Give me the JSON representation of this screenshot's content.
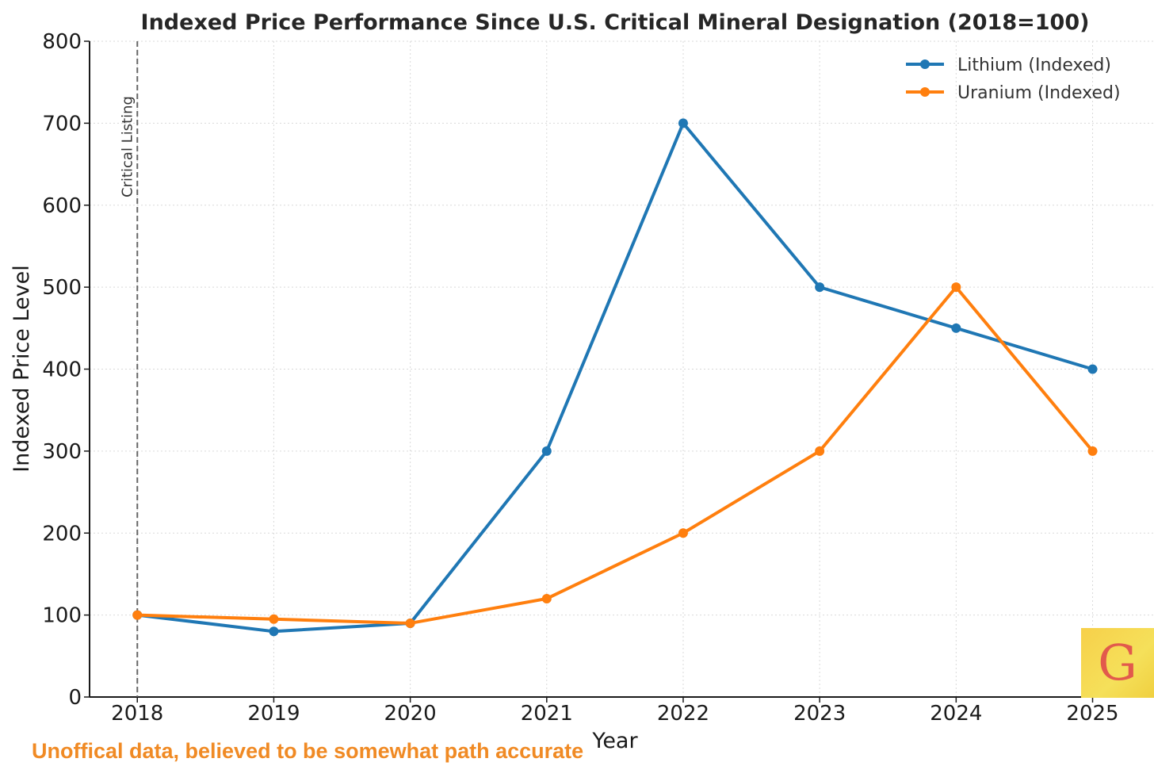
{
  "chart_data": {
    "type": "line",
    "title": "Indexed Price Performance Since U.S. Critical Mineral Designation (2018=100)",
    "xlabel": "Year",
    "ylabel": "Indexed Price Level",
    "x": [
      2018,
      2019,
      2020,
      2021,
      2022,
      2023,
      2024,
      2025
    ],
    "x_tick_labels": [
      "2018",
      "2019",
      "2020",
      "2021",
      "2022",
      "2023",
      "2024",
      "2025"
    ],
    "y_ticks": [
      0,
      100,
      200,
      300,
      400,
      500,
      600,
      700,
      800
    ],
    "xlim": [
      2017.65,
      2025.45
    ],
    "ylim": [
      0,
      800
    ],
    "grid": true,
    "legend_position": "top-right",
    "series": [
      {
        "name": "Lithium (Indexed)",
        "color": "#1f77b4",
        "values": [
          100,
          80,
          90,
          300,
          700,
          500,
          450,
          400
        ]
      },
      {
        "name": "Uranium (Indexed)",
        "color": "#ff7f0e",
        "values": [
          100,
          95,
          90,
          120,
          200,
          300,
          500,
          300
        ]
      }
    ],
    "annotations": [
      {
        "type": "vertical-line",
        "x": 2018,
        "style": "dashed",
        "label": "Critical Listing"
      }
    ]
  },
  "footer_note": "Unoffical data, believed to be somewhat path accurate",
  "logo_text": "G"
}
